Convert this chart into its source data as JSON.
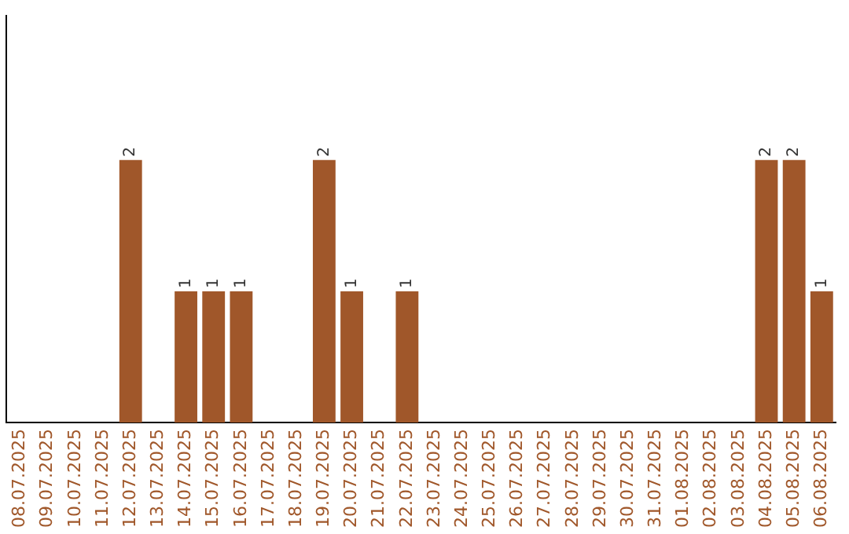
{
  "chart_data": {
    "type": "bar",
    "categories": [
      "08.07.2025",
      "09.07.2025",
      "10.07.2025",
      "11.07.2025",
      "12.07.2025",
      "13.07.2025",
      "14.07.2025",
      "15.07.2025",
      "16.07.2025",
      "17.07.2025",
      "18.07.2025",
      "19.07.2025",
      "20.07.2025",
      "21.07.2025",
      "22.07.2025",
      "23.07.2025",
      "24.07.2025",
      "25.07.2025",
      "26.07.2025",
      "27.07.2025",
      "28.07.2025",
      "29.07.2025",
      "30.07.2025",
      "31.07.2025",
      "01.08.2025",
      "02.08.2025",
      "03.08.2025",
      "04.08.2025",
      "05.08.2025",
      "06.08.2025"
    ],
    "values": [
      0,
      0,
      0,
      0,
      2,
      0,
      1,
      1,
      1,
      0,
      0,
      2,
      1,
      0,
      1,
      0,
      0,
      0,
      0,
      0,
      0,
      0,
      0,
      0,
      0,
      0,
      0,
      2,
      2,
      1
    ],
    "value_labels": [
      null,
      null,
      null,
      null,
      "2",
      null,
      "1",
      "1",
      "1",
      null,
      null,
      "2",
      "1",
      null,
      "1",
      null,
      null,
      null,
      null,
      null,
      null,
      null,
      null,
      null,
      null,
      null,
      null,
      "2",
      "2",
      "1"
    ],
    "color": "#a0572a",
    "ylim": [
      0,
      3.1
    ],
    "tick_labels": "x",
    "grid": false,
    "legend": false
  }
}
